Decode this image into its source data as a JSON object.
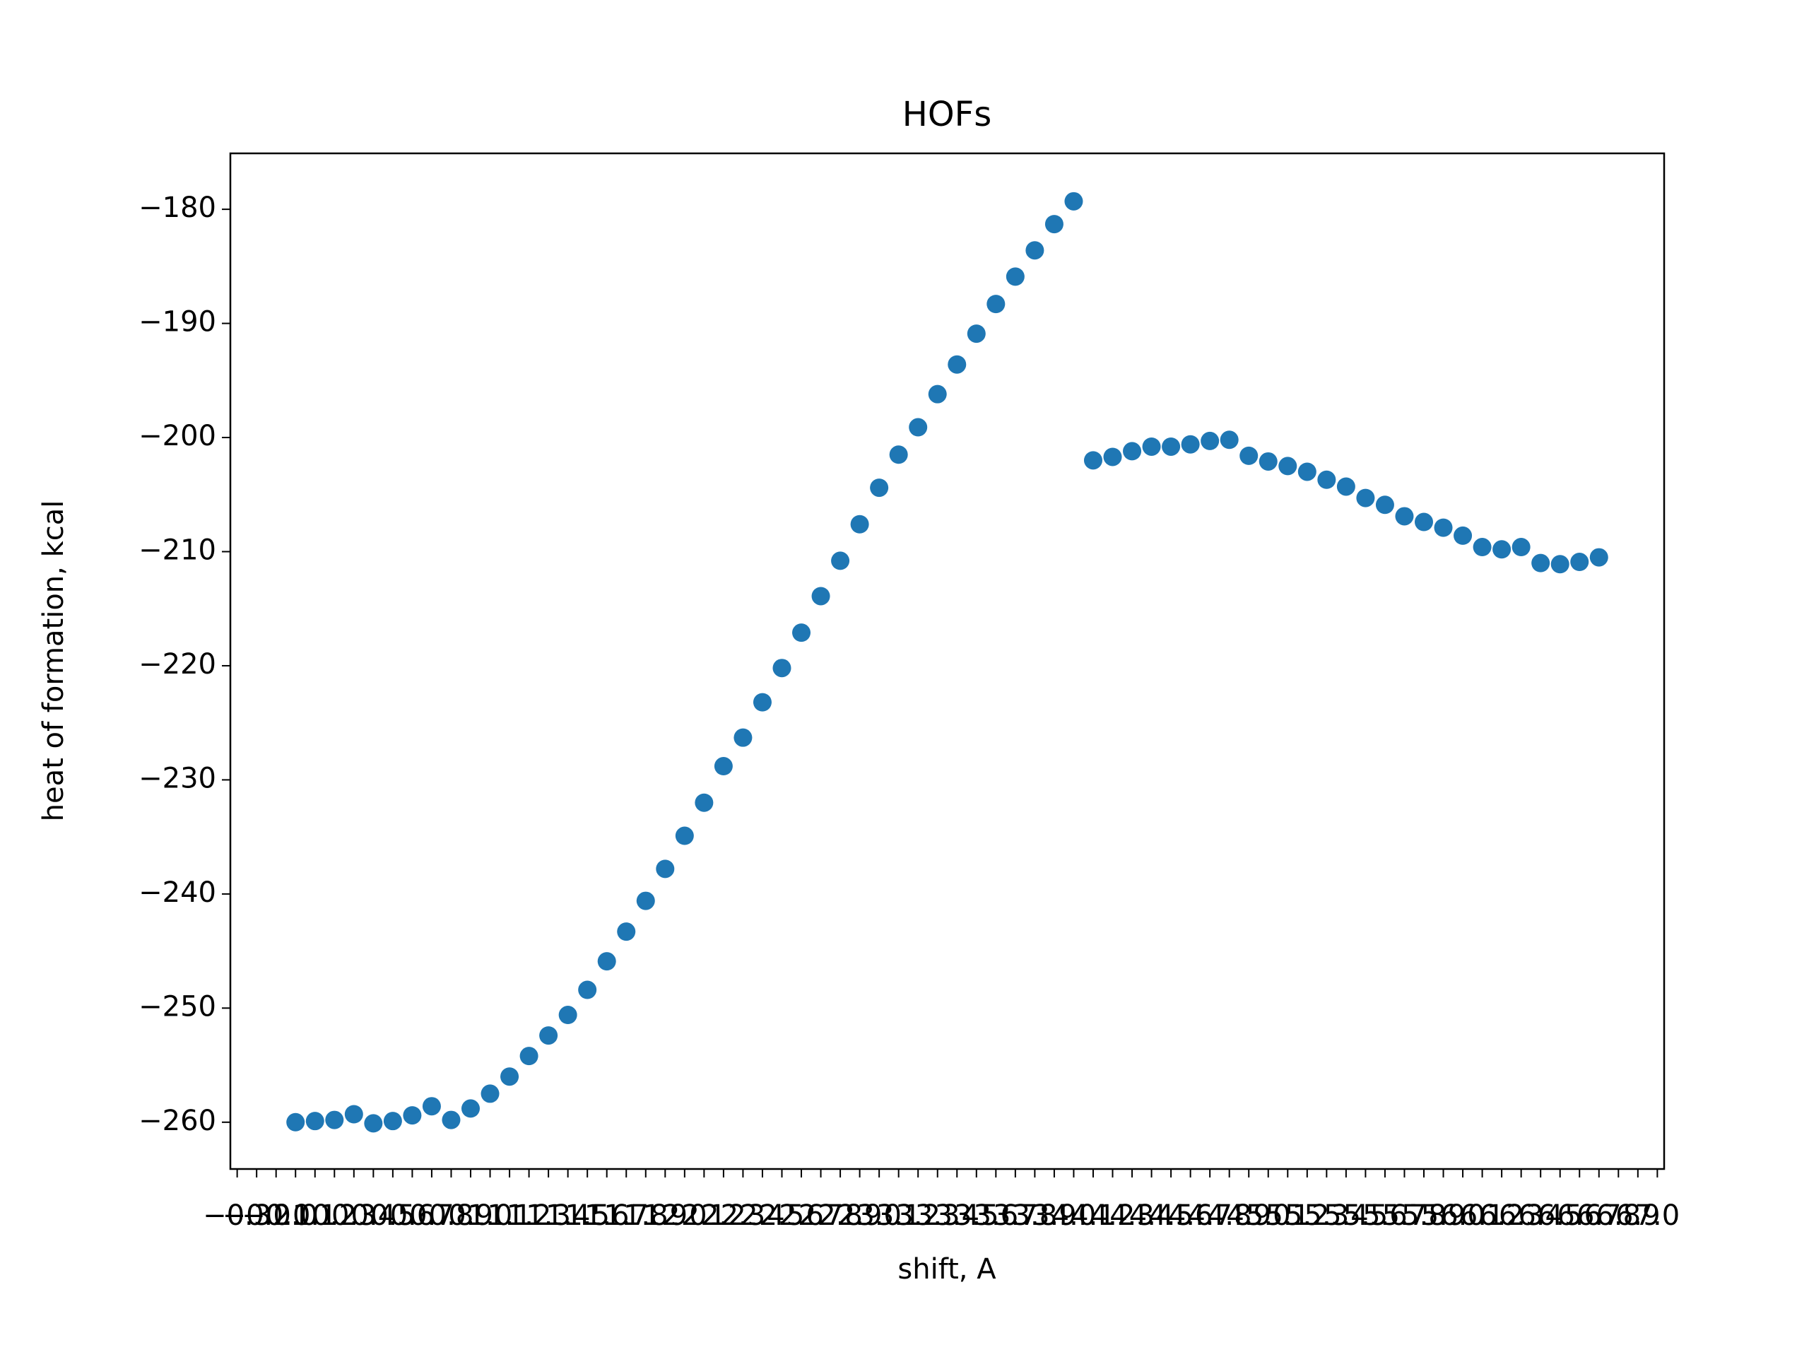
{
  "chart_data": {
    "type": "scatter",
    "title": "HOFs",
    "x_label": "shift, A",
    "y_label": "heat of formation, kcal",
    "color": "#1f77b4",
    "series": [
      {
        "name": null,
        "color": "#1f77b4",
        "x": [
          0,
          0.1,
          0.2,
          0.3,
          0.4,
          0.5,
          0.6,
          0.7,
          0.8,
          0.9,
          1.0,
          1.1,
          1.2,
          1.3,
          1.4,
          1.5,
          1.6,
          1.7,
          1.8,
          1.9,
          2.0,
          2.1,
          2.2,
          2.3,
          2.4,
          2.5,
          2.6,
          2.7,
          2.8,
          2.9,
          3.0,
          3.1,
          3.2,
          3.3,
          3.4,
          3.5,
          3.6,
          3.7,
          3.8,
          3.9,
          4.0,
          4.1,
          4.2,
          4.3,
          4.4,
          4.5,
          4.6,
          4.7,
          4.8,
          4.9,
          5.0,
          5.1,
          5.2,
          5.3,
          5.4,
          5.5,
          5.6,
          5.7,
          5.8,
          5.9,
          6.0,
          6.1,
          6.2,
          6.3,
          6.4,
          6.5,
          6.6,
          6.7
        ],
        "values": [
          -260.0,
          -259.9,
          -259.8,
          -259.3,
          -260.1,
          -259.9,
          -259.4,
          -258.6,
          -259.8,
          -258.8,
          -257.5,
          -256.0,
          -254.2,
          -252.4,
          -250.6,
          -248.4,
          -245.9,
          -243.3,
          -240.6,
          -237.8,
          -234.9,
          -232.0,
          -228.8,
          -226.3,
          -223.2,
          -220.2,
          -217.1,
          -213.9,
          -210.8,
          -207.6,
          -204.4,
          -201.5,
          -199.1,
          -196.2,
          -193.6,
          -190.9,
          -188.3,
          -185.9,
          -183.6,
          -181.3,
          -179.3,
          -202.0,
          -201.7,
          -201.2,
          -200.8,
          -200.8,
          -200.6,
          -200.3,
          -200.2,
          -201.6,
          -202.1,
          -202.5,
          -203.0,
          -203.7,
          -204.3,
          -205.3,
          -205.9,
          -206.9,
          -207.4,
          -207.9,
          -208.6,
          -209.6,
          -209.8,
          -209.6,
          -211.0,
          -211.1,
          -210.9,
          -210.5
        ]
      }
    ],
    "xlim": [
      -0.335,
      7.035
    ],
    "xticks": [
      {
        "value": -0.3,
        "label": "−0.3"
      },
      {
        "value": -0.2,
        "label": "−0.2"
      },
      {
        "value": -0.1,
        "label": "−0.1"
      },
      {
        "value": 0,
        "label": "0.0"
      },
      0.1,
      0.2,
      0.3,
      0.4,
      0.5,
      0.6,
      0.7,
      0.8,
      0.9,
      {
        "value": 1,
        "label": "1.0"
      },
      1.1,
      1.2,
      1.3,
      1.4,
      1.5,
      1.6,
      1.7,
      1.8,
      1.9,
      {
        "value": 2,
        "label": "2.0"
      },
      2.1,
      2.2,
      2.3,
      2.4,
      2.5,
      2.6,
      2.7,
      2.8,
      2.9,
      {
        "value": 3,
        "label": "3.0"
      },
      3.1,
      3.2,
      3.3,
      3.4,
      3.5,
      3.6,
      3.7,
      3.8,
      3.9,
      {
        "value": 4,
        "label": "4.0"
      },
      4.1,
      4.2,
      4.3,
      4.4,
      4.5,
      4.6,
      4.7,
      4.8,
      4.9,
      {
        "value": 5,
        "label": "5.0"
      },
      5.1,
      5.2,
      5.3,
      5.4,
      5.5,
      5.6,
      5.7,
      5.8,
      5.9,
      {
        "value": 6,
        "label": "6.0"
      },
      6.1,
      6.2,
      6.3,
      6.4,
      6.5,
      6.6,
      6.7,
      6.8,
      6.9,
      {
        "value": 7,
        "label": "7.0"
      }
    ],
    "ylim": [
      -264.1,
      -175.1
    ],
    "yticks": [
      {
        "value": -260,
        "label": "−260"
      },
      {
        "value": -250,
        "label": "−250"
      },
      {
        "value": -240,
        "label": "−240"
      },
      {
        "value": -230,
        "label": "−230"
      },
      {
        "value": -220,
        "label": "−220"
      },
      {
        "value": -210,
        "label": "−210"
      },
      {
        "value": -200,
        "label": "−200"
      },
      {
        "value": -190,
        "label": "−190"
      },
      {
        "value": -180,
        "label": "−180"
      }
    ],
    "grid": false
  }
}
